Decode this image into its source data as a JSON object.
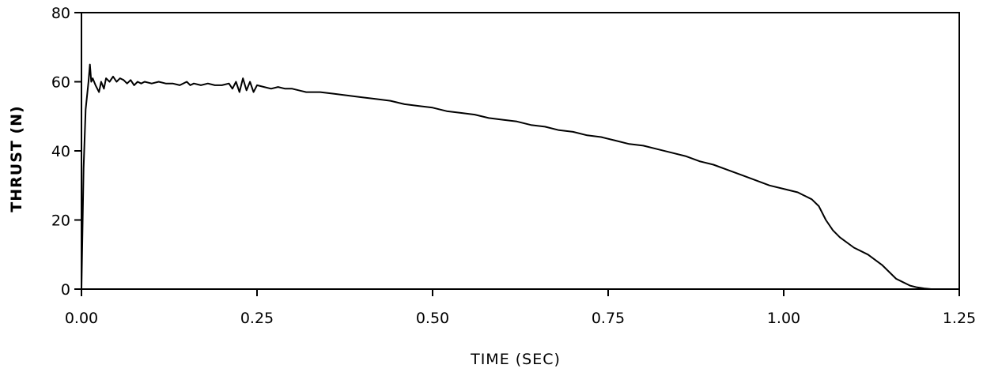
{
  "chart_data": {
    "type": "line",
    "title": "",
    "xlabel": "TIME (SEC)",
    "ylabel": "THRUST (N)",
    "xlim": [
      0,
      1.25
    ],
    "ylim": [
      0,
      80
    ],
    "x_ticks": [
      "0.00",
      "0.25",
      "0.50",
      "0.75",
      "1.00",
      "1.25"
    ],
    "y_ticks": [
      "0",
      "20",
      "40",
      "60",
      "80"
    ],
    "grid": false,
    "legend": "none",
    "line_color": "#000000",
    "series": [
      {
        "x": [
          0.0,
          0.003,
          0.006,
          0.01,
          0.012,
          0.014,
          0.016,
          0.02,
          0.025,
          0.028,
          0.032,
          0.035,
          0.04,
          0.045,
          0.05,
          0.055,
          0.06,
          0.065,
          0.07,
          0.075,
          0.08,
          0.085,
          0.09,
          0.1,
          0.11,
          0.12,
          0.13,
          0.14,
          0.15,
          0.155,
          0.16,
          0.17,
          0.18,
          0.19,
          0.2,
          0.21,
          0.215,
          0.22,
          0.225,
          0.23,
          0.235,
          0.24,
          0.245,
          0.25,
          0.26,
          0.27,
          0.28,
          0.29,
          0.3,
          0.32,
          0.34,
          0.36,
          0.38,
          0.4,
          0.42,
          0.44,
          0.46,
          0.48,
          0.5,
          0.52,
          0.54,
          0.56,
          0.58,
          0.6,
          0.62,
          0.64,
          0.66,
          0.68,
          0.7,
          0.72,
          0.74,
          0.76,
          0.78,
          0.8,
          0.82,
          0.84,
          0.86,
          0.88,
          0.9,
          0.92,
          0.94,
          0.96,
          0.98,
          1.0,
          1.02,
          1.03,
          1.04,
          1.05,
          1.06,
          1.07,
          1.08,
          1.1,
          1.12,
          1.14,
          1.16,
          1.17,
          1.18,
          1.19,
          1.2,
          1.21,
          1.22,
          1.23,
          1.25
        ],
        "y": [
          0,
          35,
          52,
          60,
          65,
          60,
          61,
          59,
          57,
          60,
          58,
          61,
          60,
          61.5,
          60,
          61,
          60.5,
          59.5,
          60.5,
          59,
          60,
          59.5,
          60,
          59.5,
          60,
          59.5,
          59.5,
          59,
          60,
          59,
          59.5,
          59,
          59.5,
          59,
          59,
          59.5,
          58,
          60,
          57,
          61,
          57.5,
          60,
          57,
          59,
          58.5,
          58,
          58.5,
          58,
          58,
          57,
          57,
          56.5,
          56,
          55.5,
          55,
          54.5,
          53.5,
          53,
          52.5,
          51.5,
          51,
          50.5,
          49.5,
          49,
          48.5,
          47.5,
          47,
          46,
          45.5,
          44.5,
          44,
          43,
          42,
          41.5,
          40.5,
          39.5,
          38.5,
          37,
          36,
          34.5,
          33,
          31.5,
          30,
          29,
          28,
          27,
          26,
          24,
          20,
          17,
          15,
          12,
          10,
          7,
          3,
          2,
          1,
          0.5,
          0.2,
          0,
          0,
          0,
          0
        ]
      }
    ]
  }
}
